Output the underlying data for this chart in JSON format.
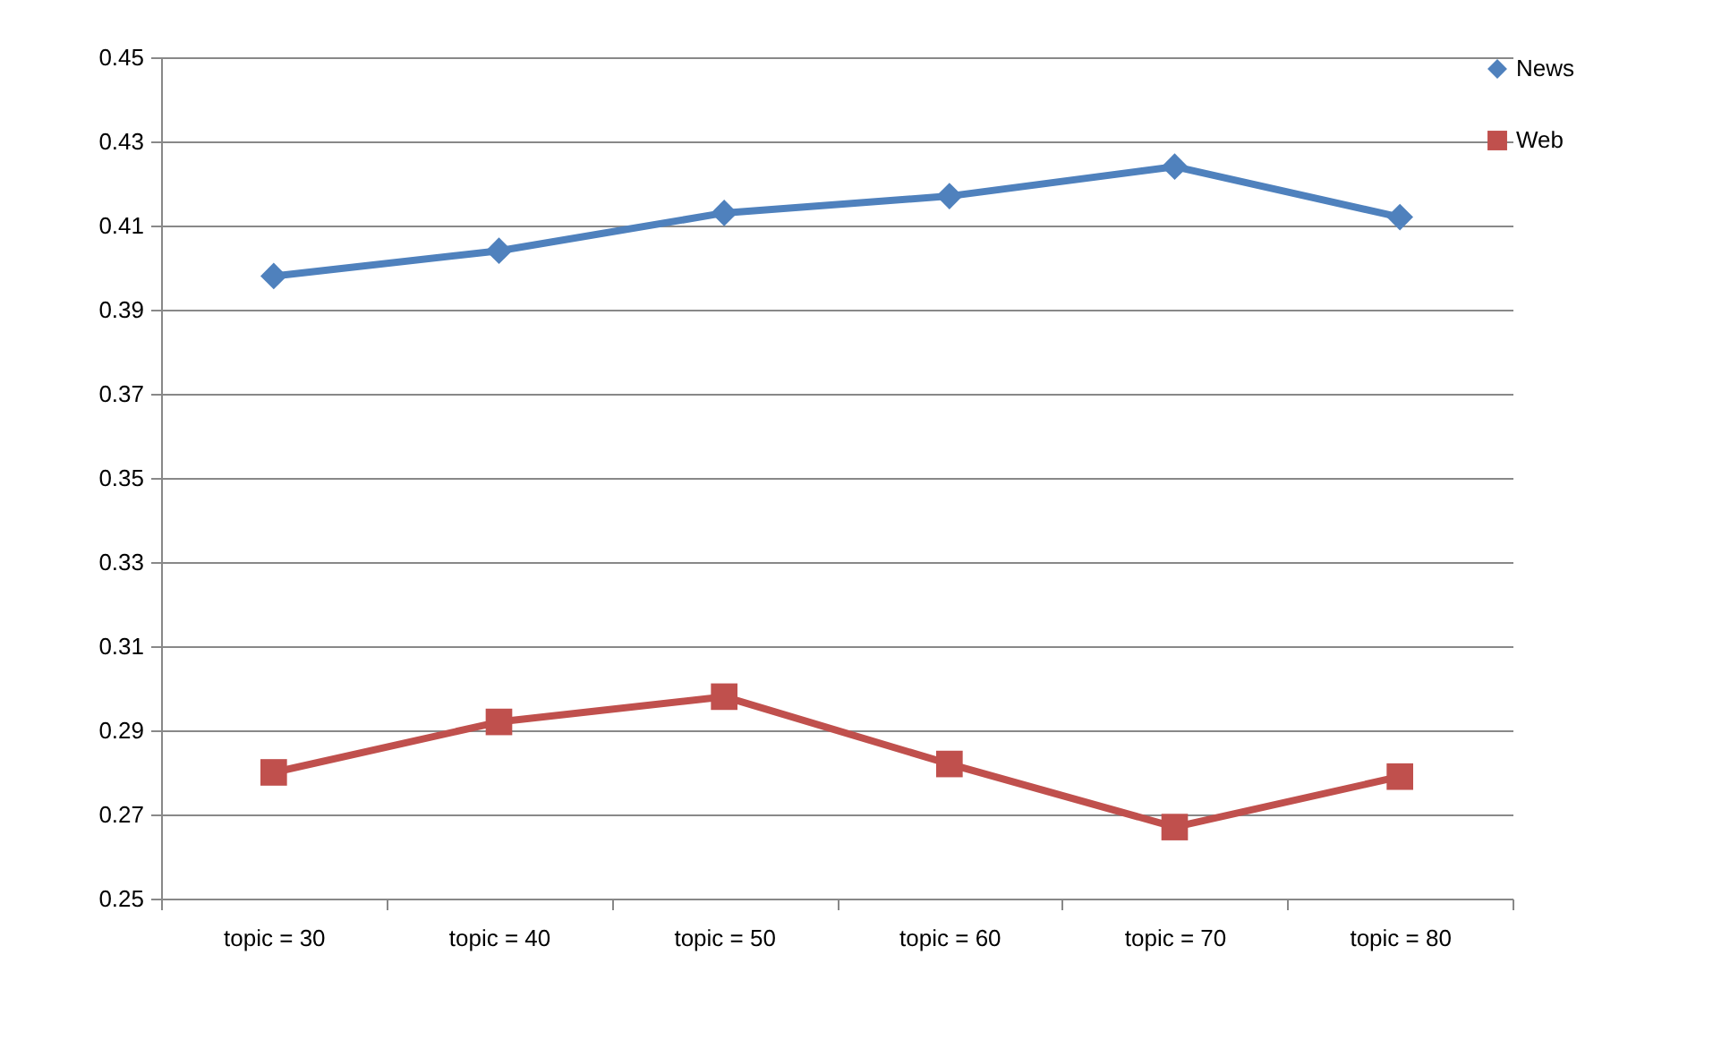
{
  "chart_data": {
    "type": "line",
    "categories": [
      "topic = 30",
      "topic = 40",
      "topic = 50",
      "topic = 60",
      "topic = 70",
      "topic = 80"
    ],
    "series": [
      {
        "name": "News",
        "color": "#4f81bd",
        "marker": "diamond",
        "values": [
          0.398,
          0.404,
          0.413,
          0.417,
          0.424,
          0.412
        ]
      },
      {
        "name": "Web",
        "color": "#c0504d",
        "marker": "square",
        "values": [
          0.28,
          0.292,
          0.298,
          0.282,
          0.267,
          0.279
        ]
      }
    ],
    "ylim": [
      0.25,
      0.45
    ],
    "yticks": [
      0.25,
      0.27,
      0.29,
      0.31,
      0.33,
      0.35,
      0.37,
      0.39,
      0.41,
      0.43,
      0.45
    ],
    "grid": "y",
    "legend": "right",
    "line_style": "solid"
  }
}
